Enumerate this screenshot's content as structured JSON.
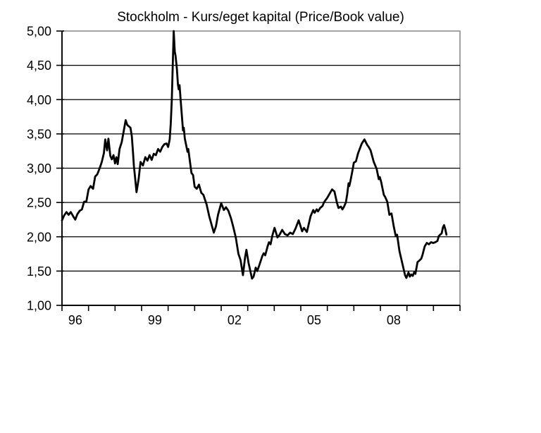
{
  "title": "Stockholm - Kurs/eget kapital (Price/Book value)",
  "colors": {
    "line": "#000000",
    "gridline": "#000000",
    "axis": "#000000",
    "plot_border": "#8c8c8c",
    "background": "#ffffff",
    "text": "#000000"
  },
  "chart_data": {
    "type": "line",
    "title": "Stockholm - Kurs/eget kapital (Price/Book value)",
    "grid": true,
    "legend": false,
    "x_axis": {
      "range": [
        1996,
        2011
      ],
      "tick_years": [
        1996,
        1997,
        1998,
        1999,
        2000,
        2001,
        2002,
        2003,
        2004,
        2005,
        2006,
        2007,
        2008,
        2009,
        2010,
        2011
      ],
      "labels": [
        {
          "text": "96",
          "center_year": 1996.5
        },
        {
          "text": "99",
          "center_year": 1999.5
        },
        {
          "text": "02",
          "center_year": 2002.5
        },
        {
          "text": "05",
          "center_year": 2005.5
        },
        {
          "text": "08",
          "center_year": 2008.5
        }
      ]
    },
    "y_axis": {
      "range": [
        1.0,
        5.0
      ],
      "ticks": [
        {
          "label": "5,00",
          "value": 5.0
        },
        {
          "label": "4,50",
          "value": 4.5
        },
        {
          "label": "4,00",
          "value": 4.0
        },
        {
          "label": "3,50",
          "value": 3.5
        },
        {
          "label": "3,00",
          "value": 3.0
        },
        {
          "label": "2,50",
          "value": 2.5
        },
        {
          "label": "2,00",
          "value": 2.0
        },
        {
          "label": "1,50",
          "value": 1.5
        },
        {
          "label": "1,00",
          "value": 1.0
        }
      ]
    },
    "series": [
      {
        "points": [
          [
            1996.0,
            2.24
          ],
          [
            1996.08,
            2.31
          ],
          [
            1996.17,
            2.36
          ],
          [
            1996.25,
            2.32
          ],
          [
            1996.33,
            2.36
          ],
          [
            1996.42,
            2.3
          ],
          [
            1996.5,
            2.25
          ],
          [
            1996.58,
            2.33
          ],
          [
            1996.67,
            2.38
          ],
          [
            1996.75,
            2.4
          ],
          [
            1996.83,
            2.51
          ],
          [
            1996.92,
            2.52
          ],
          [
            1997.0,
            2.69
          ],
          [
            1997.08,
            2.74
          ],
          [
            1997.17,
            2.7
          ],
          [
            1997.25,
            2.88
          ],
          [
            1997.33,
            2.91
          ],
          [
            1997.42,
            3.0
          ],
          [
            1997.5,
            3.09
          ],
          [
            1997.58,
            3.22
          ],
          [
            1997.63,
            3.42
          ],
          [
            1997.7,
            3.26
          ],
          [
            1997.75,
            3.43
          ],
          [
            1997.82,
            3.18
          ],
          [
            1997.88,
            3.13
          ],
          [
            1997.94,
            3.19
          ],
          [
            1998.0,
            3.07
          ],
          [
            1998.05,
            3.16
          ],
          [
            1998.1,
            3.06
          ],
          [
            1998.17,
            3.28
          ],
          [
            1998.25,
            3.38
          ],
          [
            1998.33,
            3.55
          ],
          [
            1998.4,
            3.7
          ],
          [
            1998.46,
            3.63
          ],
          [
            1998.52,
            3.61
          ],
          [
            1998.58,
            3.59
          ],
          [
            1998.63,
            3.47
          ],
          [
            1998.67,
            3.26
          ],
          [
            1998.71,
            3.03
          ],
          [
            1998.75,
            2.88
          ],
          [
            1998.81,
            2.65
          ],
          [
            1998.89,
            2.85
          ],
          [
            1998.96,
            3.09
          ],
          [
            1999.05,
            3.04
          ],
          [
            1999.14,
            3.16
          ],
          [
            1999.22,
            3.11
          ],
          [
            1999.3,
            3.19
          ],
          [
            1999.38,
            3.12
          ],
          [
            1999.46,
            3.21
          ],
          [
            1999.54,
            3.19
          ],
          [
            1999.62,
            3.28
          ],
          [
            1999.7,
            3.24
          ],
          [
            1999.78,
            3.31
          ],
          [
            1999.86,
            3.35
          ],
          [
            1999.94,
            3.36
          ],
          [
            2000.0,
            3.31
          ],
          [
            2000.06,
            3.42
          ],
          [
            2000.1,
            3.65
          ],
          [
            2000.14,
            4.0
          ],
          [
            2000.17,
            4.45
          ],
          [
            2000.21,
            5.0
          ],
          [
            2000.25,
            4.7
          ],
          [
            2000.28,
            4.64
          ],
          [
            2000.33,
            4.45
          ],
          [
            2000.37,
            4.22
          ],
          [
            2000.4,
            4.15
          ],
          [
            2000.43,
            4.21
          ],
          [
            2000.47,
            4.0
          ],
          [
            2000.52,
            3.75
          ],
          [
            2000.56,
            3.55
          ],
          [
            2000.59,
            3.59
          ],
          [
            2000.63,
            3.43
          ],
          [
            2000.7,
            3.3
          ],
          [
            2000.73,
            3.24
          ],
          [
            2000.76,
            3.28
          ],
          [
            2000.82,
            3.1
          ],
          [
            2000.88,
            2.93
          ],
          [
            2000.94,
            2.9
          ],
          [
            2001.0,
            2.73
          ],
          [
            2001.08,
            2.7
          ],
          [
            2001.16,
            2.76
          ],
          [
            2001.25,
            2.64
          ],
          [
            2001.33,
            2.61
          ],
          [
            2001.45,
            2.47
          ],
          [
            2001.55,
            2.3
          ],
          [
            2001.72,
            2.06
          ],
          [
            2001.8,
            2.15
          ],
          [
            2001.88,
            2.32
          ],
          [
            2002.0,
            2.49
          ],
          [
            2002.1,
            2.39
          ],
          [
            2002.18,
            2.43
          ],
          [
            2002.27,
            2.38
          ],
          [
            2002.37,
            2.27
          ],
          [
            2002.45,
            2.15
          ],
          [
            2002.55,
            1.99
          ],
          [
            2002.65,
            1.75
          ],
          [
            2002.73,
            1.66
          ],
          [
            2002.82,
            1.44
          ],
          [
            2002.9,
            1.7
          ],
          [
            2002.95,
            1.81
          ],
          [
            2003.03,
            1.62
          ],
          [
            2003.1,
            1.5
          ],
          [
            2003.16,
            1.39
          ],
          [
            2003.22,
            1.42
          ],
          [
            2003.3,
            1.55
          ],
          [
            2003.36,
            1.5
          ],
          [
            2003.45,
            1.6
          ],
          [
            2003.55,
            1.72
          ],
          [
            2003.6,
            1.76
          ],
          [
            2003.66,
            1.73
          ],
          [
            2003.75,
            1.86
          ],
          [
            2003.8,
            1.92
          ],
          [
            2003.86,
            1.89
          ],
          [
            2003.93,
            2.02
          ],
          [
            2004.01,
            2.13
          ],
          [
            2004.12,
            1.99
          ],
          [
            2004.2,
            2.03
          ],
          [
            2004.3,
            2.1
          ],
          [
            2004.4,
            2.04
          ],
          [
            2004.5,
            2.02
          ],
          [
            2004.6,
            2.06
          ],
          [
            2004.7,
            2.04
          ],
          [
            2004.8,
            2.12
          ],
          [
            2004.92,
            2.24
          ],
          [
            2005.05,
            2.08
          ],
          [
            2005.12,
            2.13
          ],
          [
            2005.23,
            2.07
          ],
          [
            2005.37,
            2.3
          ],
          [
            2005.47,
            2.39
          ],
          [
            2005.52,
            2.35
          ],
          [
            2005.6,
            2.4
          ],
          [
            2005.65,
            2.37
          ],
          [
            2005.73,
            2.42
          ],
          [
            2005.82,
            2.45
          ],
          [
            2005.87,
            2.5
          ],
          [
            2006.0,
            2.57
          ],
          [
            2006.18,
            2.69
          ],
          [
            2006.27,
            2.66
          ],
          [
            2006.36,
            2.5
          ],
          [
            2006.42,
            2.42
          ],
          [
            2006.51,
            2.44
          ],
          [
            2006.57,
            2.4
          ],
          [
            2006.63,
            2.44
          ],
          [
            2006.7,
            2.5
          ],
          [
            2006.75,
            2.62
          ],
          [
            2006.8,
            2.78
          ],
          [
            2006.83,
            2.74
          ],
          [
            2006.87,
            2.81
          ],
          [
            2006.93,
            2.93
          ],
          [
            2007.0,
            3.08
          ],
          [
            2007.08,
            3.1
          ],
          [
            2007.16,
            3.22
          ],
          [
            2007.24,
            3.3
          ],
          [
            2007.3,
            3.36
          ],
          [
            2007.4,
            3.42
          ],
          [
            2007.5,
            3.34
          ],
          [
            2007.56,
            3.31
          ],
          [
            2007.63,
            3.26
          ],
          [
            2007.75,
            3.09
          ],
          [
            2007.86,
            2.99
          ],
          [
            2007.94,
            2.84
          ],
          [
            2007.98,
            2.87
          ],
          [
            2008.03,
            2.8
          ],
          [
            2008.13,
            2.61
          ],
          [
            2008.18,
            2.58
          ],
          [
            2008.26,
            2.51
          ],
          [
            2008.34,
            2.32
          ],
          [
            2008.42,
            2.34
          ],
          [
            2008.5,
            2.16
          ],
          [
            2008.58,
            2.01
          ],
          [
            2008.63,
            2.03
          ],
          [
            2008.72,
            1.79
          ],
          [
            2008.84,
            1.59
          ],
          [
            2008.93,
            1.44
          ],
          [
            2008.98,
            1.4
          ],
          [
            2009.06,
            1.48
          ],
          [
            2009.11,
            1.42
          ],
          [
            2009.16,
            1.45
          ],
          [
            2009.22,
            1.43
          ],
          [
            2009.27,
            1.48
          ],
          [
            2009.32,
            1.46
          ],
          [
            2009.4,
            1.63
          ],
          [
            2009.46,
            1.65
          ],
          [
            2009.54,
            1.68
          ],
          [
            2009.59,
            1.74
          ],
          [
            2009.67,
            1.86
          ],
          [
            2009.75,
            1.91
          ],
          [
            2009.83,
            1.89
          ],
          [
            2009.91,
            1.92
          ],
          [
            2009.99,
            1.91
          ],
          [
            2010.07,
            1.92
          ],
          [
            2010.15,
            1.94
          ],
          [
            2010.2,
            2.01
          ],
          [
            2010.25,
            2.03
          ],
          [
            2010.31,
            2.05
          ],
          [
            2010.36,
            2.14
          ],
          [
            2010.4,
            2.17
          ],
          [
            2010.44,
            2.12
          ],
          [
            2010.49,
            2.03
          ]
        ]
      }
    ]
  }
}
